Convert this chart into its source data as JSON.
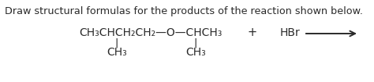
{
  "title": "Draw structural formulas for the products of the reaction shown below.",
  "background_color": "#ffffff",
  "text_color": "#2a2a2a",
  "formula_main": "CH₃CHCH₂CH₂—O—CHCH₃",
  "plus_text": "+",
  "hbr_text": "HBr",
  "branch_bar": "|",
  "ch3_text": "CH₃",
  "title_fontsize": 9.2,
  "formula_fontsize": 10.0,
  "plus_fontsize": 10.5,
  "hbr_fontsize": 10.0,
  "branch_fontsize": 9.5,
  "ch3_fontsize": 10.0,
  "arrow_color": "#2a2a2a"
}
